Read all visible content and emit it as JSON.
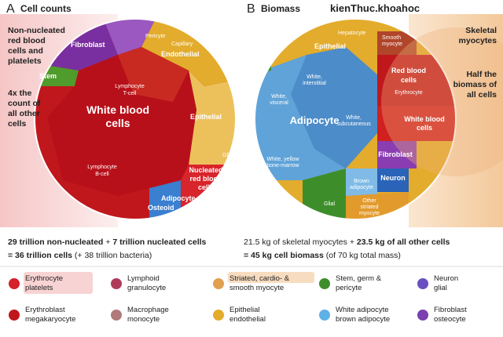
{
  "watermark": "kienThuc.khoahoc",
  "panel_a": {
    "letter": "A",
    "title": "Cell counts",
    "note_top": [
      "Non-nucleated",
      "red blood",
      "cells and",
      "platelets"
    ],
    "note_bottom": [
      "4x the",
      "count of",
      "all other",
      "cells"
    ],
    "labels": {
      "fibroblast": "Fibroblast",
      "pericyte": "Pericyte",
      "stem": "Stem",
      "capillary": "Capillary",
      "endothelial": "Endothelial",
      "lymph_t": [
        "Lymphocyte",
        "T-cell"
      ],
      "wbc": [
        "White blood",
        "cells"
      ],
      "epithelial": "Epithelial",
      "lymph_b": [
        "Lymphocyte",
        "B-cell"
      ],
      "nrbc": [
        "Nucleated",
        "red blood",
        "cells"
      ],
      "glial": "Glial",
      "adipocyte": "Adipocyte",
      "osteoid": "Osteoid"
    },
    "summary": [
      [
        "29 trillion non-nucleated",
        "+",
        "7 trillion nucleated cells"
      ],
      [
        "= 36 trillion cells",
        "(+ 38 trillion bacteria)"
      ]
    ]
  },
  "panel_b": {
    "letter": "B",
    "title": "Biomass",
    "note_top": [
      "Skeletal",
      "myocytes"
    ],
    "note_bottom": [
      "Half the",
      "biomass of",
      "all cells"
    ],
    "labels": {
      "epithelial": "Epithelial",
      "hepatocyte": "Hepatocyte",
      "smooth": [
        "Smooth",
        "myocyte"
      ],
      "pericyte": "Pericyte",
      "interstitial": [
        "White,",
        "interstitial"
      ],
      "visceral": [
        "White,",
        "visceral"
      ],
      "adipocyte": "Adipocyte",
      "subcutaneous": [
        "White,",
        "subcutaneous"
      ],
      "marrow": [
        "White, yellow",
        "bone-marrow"
      ],
      "brown": [
        "Brown",
        "adipocyte"
      ],
      "rbc": [
        "Red blood",
        "cells"
      ],
      "erythrocyte": "Erythrocyte",
      "wbc": [
        "White blood",
        "cells"
      ],
      "fibroblast": "Fibroblast",
      "neuron": "Neuron",
      "other_striated": [
        "Other",
        "striated",
        "myocyte"
      ],
      "glial": "Glial"
    },
    "summary": [
      [
        "21.5 kg of skeletal myocytes",
        "+",
        "23.5 kg of all other cells"
      ],
      [
        "= 45 kg cell biomass",
        "(of 70 kg total mass)"
      ]
    ]
  },
  "legend": [
    [
      "Erythrocyte",
      "platelets"
    ],
    [
      "Lymphoid",
      "granulocyte"
    ],
    [
      "Striated, cardio- &",
      "smooth myocyte"
    ],
    [
      "Stem, germ &",
      "pericyte"
    ],
    [
      "Neuron",
      "glial"
    ],
    [
      "Erythroblast",
      "megakaryocyte"
    ],
    [
      "Macrophage",
      "monocyte"
    ],
    [
      "Epithelial",
      "endothelial"
    ],
    [
      "White adipocyte",
      "brown adipocyte"
    ],
    [
      "Fibroblast",
      "osteocyte"
    ]
  ]
}
